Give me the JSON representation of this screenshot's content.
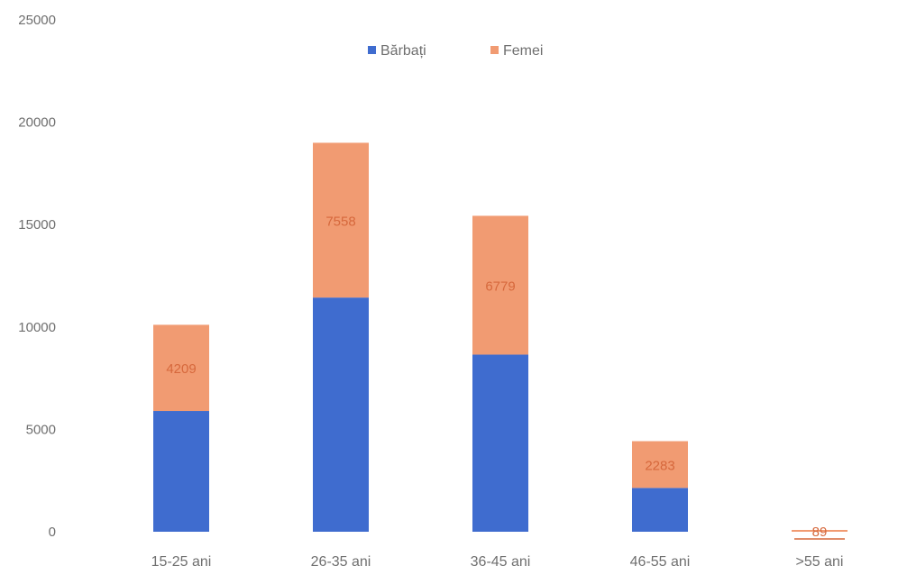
{
  "chart_data": {
    "type": "bar",
    "stacked": true,
    "categories": [
      "15-25 ani",
      "26-35 ani",
      "36-45 ani",
      "46-55 ani",
      ">55 ani"
    ],
    "series": [
      {
        "name": "Bărbați",
        "color": "#3f6ccf",
        "values": [
          5897,
          11437,
          8650,
          2140,
          0
        ],
        "value_labels": [
          "",
          "",
          "",
          "",
          ""
        ]
      },
      {
        "name": "Femei",
        "color": "#f19b72",
        "values": [
          4209,
          7558,
          6779,
          2283,
          89
        ],
        "value_labels": [
          "4209",
          "7558",
          "6779",
          "2283",
          "89"
        ]
      }
    ],
    "y_ticks": [
      "0",
      "5000",
      "10000",
      "15000",
      "20000",
      "25000"
    ],
    "ylim": [
      0,
      25000
    ],
    "legend_position": "top-center",
    "grid": false
  }
}
